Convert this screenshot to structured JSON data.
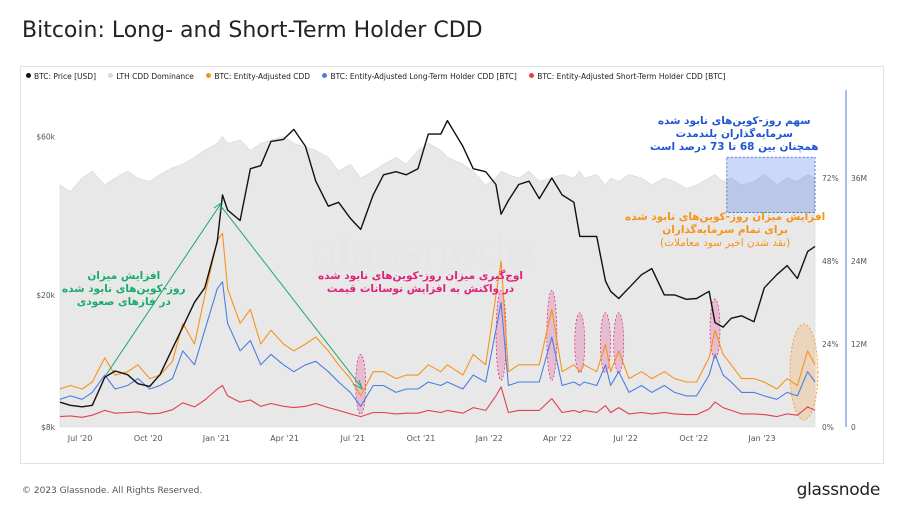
{
  "page_title": "Bitcoin: Long- and Short-Term Holder CDD",
  "footer_copyright": "© 2023 Glassnode. All Rights Reserved.",
  "brand": "glassnode",
  "watermark": "glassnode",
  "colors": {
    "price": "#111111",
    "dominance": "#d9d9d9",
    "entity_cdd": "#f7931a",
    "lth_cdd": "#4a7fe0",
    "sth_cdd": "#e0404e",
    "annotation_green": "#1aaa6e",
    "annotation_pink": "#e0207a",
    "annotation_blue": "#2255d6",
    "annotation_orange": "#f7931a"
  },
  "legend": [
    {
      "label": "BTC: Price [USD]",
      "color": "#111111"
    },
    {
      "label": "LTH CDD Dominance",
      "color": "#d9d9d9"
    },
    {
      "label": "BTC: Entity-Adjusted CDD",
      "color": "#f7931a"
    },
    {
      "label": "BTC: Entity-Adjusted Long-Term Holder CDD [BTC]",
      "color": "#4a7fe0"
    },
    {
      "label": "BTC: Entity-Adjusted Short-Term Holder CDD [BTC]",
      "color": "#e0404e"
    }
  ],
  "annotations": {
    "bull_phase": [
      "افزایش میزان",
      "روز-کوین‌های نابود شده",
      "در فازهای صعودی"
    ],
    "volatility": [
      "اوج‌گیری میزان روز-کوین‌های نابود شده",
      "در واکنش به افزایش نوسانات قیمت"
    ],
    "lth_share": [
      "سهم روز-کوین‌های نابود شده",
      "سرمایه‌گذاران بلندمدت",
      "همچنان بین 68 تا 73 درصد است"
    ],
    "recent": [
      "افزایش میزان روز-کوین‌های نابود شده",
      "برای تمام سرمایه‌گذاران",
      "(نقد شدن اخیر سود معاملات)"
    ]
  },
  "chart_data": {
    "type": "line",
    "title": "Bitcoin: Long- and Short-Term Holder CDD",
    "x_ticks": [
      "Jul '20",
      "Oct '20",
      "Jan '21",
      "Apr '21",
      "Jul '21",
      "Oct '21",
      "Jan '22",
      "Apr '22",
      "Jul '22",
      "Oct '22",
      "Jan '23"
    ],
    "y_price": {
      "scale": "log",
      "ticks": [
        "$8k",
        "$20k",
        "$60k"
      ],
      "range": [
        8000,
        80000
      ]
    },
    "y_dominance": {
      "ticks": [
        "0%",
        "24%",
        "48%",
        "72%"
      ],
      "range": [
        0,
        96
      ]
    },
    "y_cdd": {
      "ticks": [
        "0",
        "12M",
        "24M",
        "36M"
      ],
      "range": [
        0,
        48
      ]
    },
    "grid": false,
    "legend_position": "top-left",
    "x": [
      "2020-06-01",
      "2020-06-15",
      "2020-07-01",
      "2020-07-15",
      "2020-08-01",
      "2020-08-15",
      "2020-09-01",
      "2020-09-15",
      "2020-10-01",
      "2020-10-15",
      "2020-11-01",
      "2020-11-15",
      "2020-12-01",
      "2020-12-15",
      "2021-01-01",
      "2021-01-08",
      "2021-01-15",
      "2021-02-01",
      "2021-02-15",
      "2021-03-01",
      "2021-03-15",
      "2021-04-01",
      "2021-04-15",
      "2021-05-01",
      "2021-05-15",
      "2021-06-01",
      "2021-06-15",
      "2021-07-01",
      "2021-07-15",
      "2021-08-01",
      "2021-08-15",
      "2021-09-01",
      "2021-09-15",
      "2021-10-01",
      "2021-10-15",
      "2021-11-01",
      "2021-11-10",
      "2021-12-01",
      "2021-12-15",
      "2022-01-01",
      "2022-01-15",
      "2022-01-22",
      "2022-02-01",
      "2022-02-15",
      "2022-03-01",
      "2022-03-15",
      "2022-04-01",
      "2022-04-15",
      "2022-05-01",
      "2022-05-09",
      "2022-05-15",
      "2022-06-01",
      "2022-06-13",
      "2022-06-20",
      "2022-07-01",
      "2022-07-15",
      "2022-08-01",
      "2022-08-15",
      "2022-09-01",
      "2022-09-15",
      "2022-10-01",
      "2022-10-15",
      "2022-11-01",
      "2022-11-09",
      "2022-11-20",
      "2022-12-01",
      "2022-12-15",
      "2023-01-01",
      "2023-01-15",
      "2023-02-01",
      "2023-02-15",
      "2023-03-01",
      "2023-03-15",
      "2023-03-25"
    ],
    "series": [
      {
        "name": "BTC: Price [USD]",
        "axis": "price",
        "values": [
          9500,
          9300,
          9200,
          9300,
          11300,
          11800,
          11500,
          10800,
          10600,
          11500,
          13800,
          16000,
          19000,
          21000,
          29000,
          40000,
          36000,
          33500,
          48000,
          49000,
          58000,
          58800,
          63000,
          56000,
          44000,
          37000,
          38000,
          34000,
          31500,
          40000,
          46000,
          47000,
          46000,
          48000,
          61000,
          61000,
          67000,
          56000,
          48000,
          47000,
          43000,
          35000,
          38500,
          43000,
          44000,
          39000,
          45000,
          40000,
          38000,
          30000,
          30000,
          30000,
          22000,
          20500,
          19500,
          21000,
          23000,
          24000,
          20000,
          20000,
          19400,
          19500,
          20500,
          16500,
          16000,
          17000,
          17300,
          16600,
          21000,
          23000,
          24500,
          22400,
          27000,
          28000
        ]
      },
      {
        "name": "LTH CDD Dominance",
        "axis": "dominance",
        "values": [
          70,
          68,
          72,
          74,
          70,
          72,
          74,
          72,
          71,
          73,
          75,
          76,
          78,
          80,
          82,
          84,
          82,
          83,
          80,
          82,
          83,
          84,
          82,
          81,
          80,
          78,
          74,
          76,
          72,
          74,
          76,
          78,
          76,
          80,
          82,
          80,
          78,
          76,
          74,
          70,
          72,
          74,
          73,
          72,
          74,
          71,
          72,
          73,
          72,
          74,
          72,
          73,
          70,
          72,
          71,
          73,
          72,
          70,
          72,
          71,
          69,
          70,
          72,
          73,
          71,
          72,
          70,
          71,
          73,
          70,
          72,
          71,
          73,
          72
        ]
      },
      {
        "name": "BTC: Entity-Adjusted CDD",
        "axis": "cdd",
        "values": [
          5.5,
          6,
          5.5,
          6.5,
          10,
          7.5,
          8,
          9,
          7,
          7.5,
          9.5,
          15,
          12,
          19,
          27,
          28,
          20,
          15,
          17,
          12,
          14,
          12,
          11,
          12,
          13,
          11,
          9,
          7,
          4.5,
          8,
          8,
          7,
          7.5,
          7.5,
          9,
          8,
          9,
          7.5,
          10.5,
          9,
          19,
          24,
          8,
          9,
          9,
          9,
          17,
          8,
          9,
          8,
          9,
          8,
          12,
          8,
          11,
          7,
          8,
          7,
          8,
          7,
          6.5,
          6.5,
          10,
          14,
          10.5,
          9,
          7,
          7,
          6.5,
          5.5,
          7,
          6,
          11,
          9
        ]
      },
      {
        "name": "BTC: Entity-Adjusted Long-Term Holder CDD [BTC]",
        "axis": "cdd",
        "values": [
          4,
          4.5,
          4,
          5,
          7.5,
          5.5,
          6,
          7,
          5.5,
          6,
          7,
          11,
          9,
          14,
          20,
          21,
          15,
          11,
          12.5,
          9,
          10.5,
          9,
          8,
          9,
          9.5,
          8,
          6.5,
          5,
          3,
          6,
          6,
          5,
          5.5,
          5.5,
          6.5,
          6,
          6.5,
          5.5,
          7.5,
          6.5,
          14,
          18,
          6,
          6.5,
          6.5,
          6.5,
          13,
          6,
          6.5,
          6,
          6.5,
          6,
          9,
          6,
          8,
          5,
          6,
          5,
          6,
          5,
          4.5,
          4.5,
          7.5,
          10.5,
          7.5,
          6.5,
          5,
          5,
          4.5,
          4,
          5,
          4.5,
          8,
          6.5
        ]
      },
      {
        "name": "BTC: Entity-Adjusted Short-Term Holder CDD [BTC]",
        "axis": "cdd",
        "values": [
          1.5,
          1.6,
          1.4,
          1.7,
          2.4,
          2,
          2.1,
          2.2,
          1.9,
          2,
          2.5,
          3.5,
          2.9,
          3.9,
          5.5,
          6,
          4.5,
          3.6,
          3.9,
          3,
          3.4,
          3,
          2.8,
          3,
          3.4,
          2.8,
          2.4,
          1.9,
          1.5,
          2.1,
          2.1,
          1.9,
          2,
          2,
          2.4,
          2.1,
          2.4,
          2,
          2.8,
          2.4,
          4.5,
          5.8,
          2.1,
          2.4,
          2.4,
          2.4,
          4.1,
          2.1,
          2.4,
          2.1,
          2.4,
          2.1,
          3.1,
          2.1,
          2.8,
          1.9,
          2.1,
          1.9,
          2.1,
          1.9,
          1.8,
          1.8,
          2.6,
          3.6,
          2.8,
          2.4,
          1.9,
          1.9,
          1.8,
          1.5,
          1.9,
          1.7,
          2.9,
          2.4
        ]
      }
    ]
  }
}
